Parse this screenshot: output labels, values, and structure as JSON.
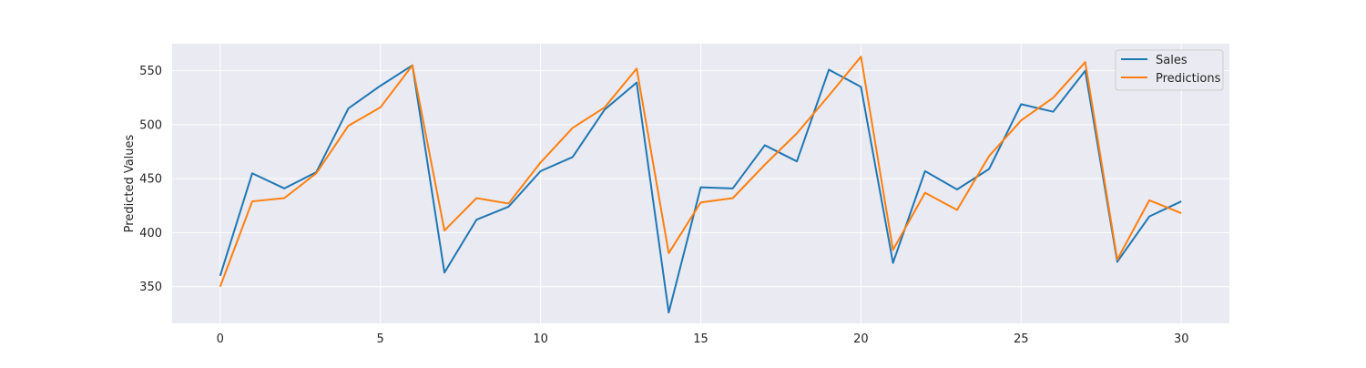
{
  "chart_data": {
    "type": "line",
    "title": "",
    "xlabel": "",
    "ylabel": "Predicted Values",
    "x": [
      0,
      1,
      2,
      3,
      4,
      5,
      6,
      7,
      8,
      9,
      10,
      11,
      12,
      13,
      14,
      15,
      16,
      17,
      18,
      19,
      20,
      21,
      22,
      23,
      24,
      25,
      26,
      27,
      28,
      29,
      30
    ],
    "xlim": [
      -1.5,
      31.5
    ],
    "ylim": [
      316,
      575
    ],
    "xticks": [
      0,
      5,
      10,
      15,
      20,
      25,
      30
    ],
    "yticks": [
      350,
      400,
      450,
      500,
      550
    ],
    "grid": true,
    "legend_position": "top-right",
    "series": [
      {
        "name": "Sales",
        "color": "#1f77b4",
        "values": [
          360,
          455,
          441,
          456,
          515,
          536,
          555,
          363,
          412,
          424,
          457,
          470,
          514,
          539,
          326,
          442,
          441,
          481,
          466,
          551,
          535,
          372,
          457,
          440,
          459,
          519,
          512,
          550,
          373,
          415,
          429
        ]
      },
      {
        "name": "Predictions",
        "color": "#ff7f0e",
        "values": [
          350,
          429,
          432,
          455,
          499,
          516,
          555,
          402,
          432,
          427,
          465,
          497,
          516,
          552,
          381,
          428,
          432,
          463,
          492,
          527,
          563,
          384,
          437,
          421,
          471,
          504,
          525,
          558,
          375,
          430,
          418
        ]
      }
    ]
  },
  "colors": {
    "plot_background": "#eaeaf2",
    "grid": "#ffffff",
    "text": "#262626"
  }
}
